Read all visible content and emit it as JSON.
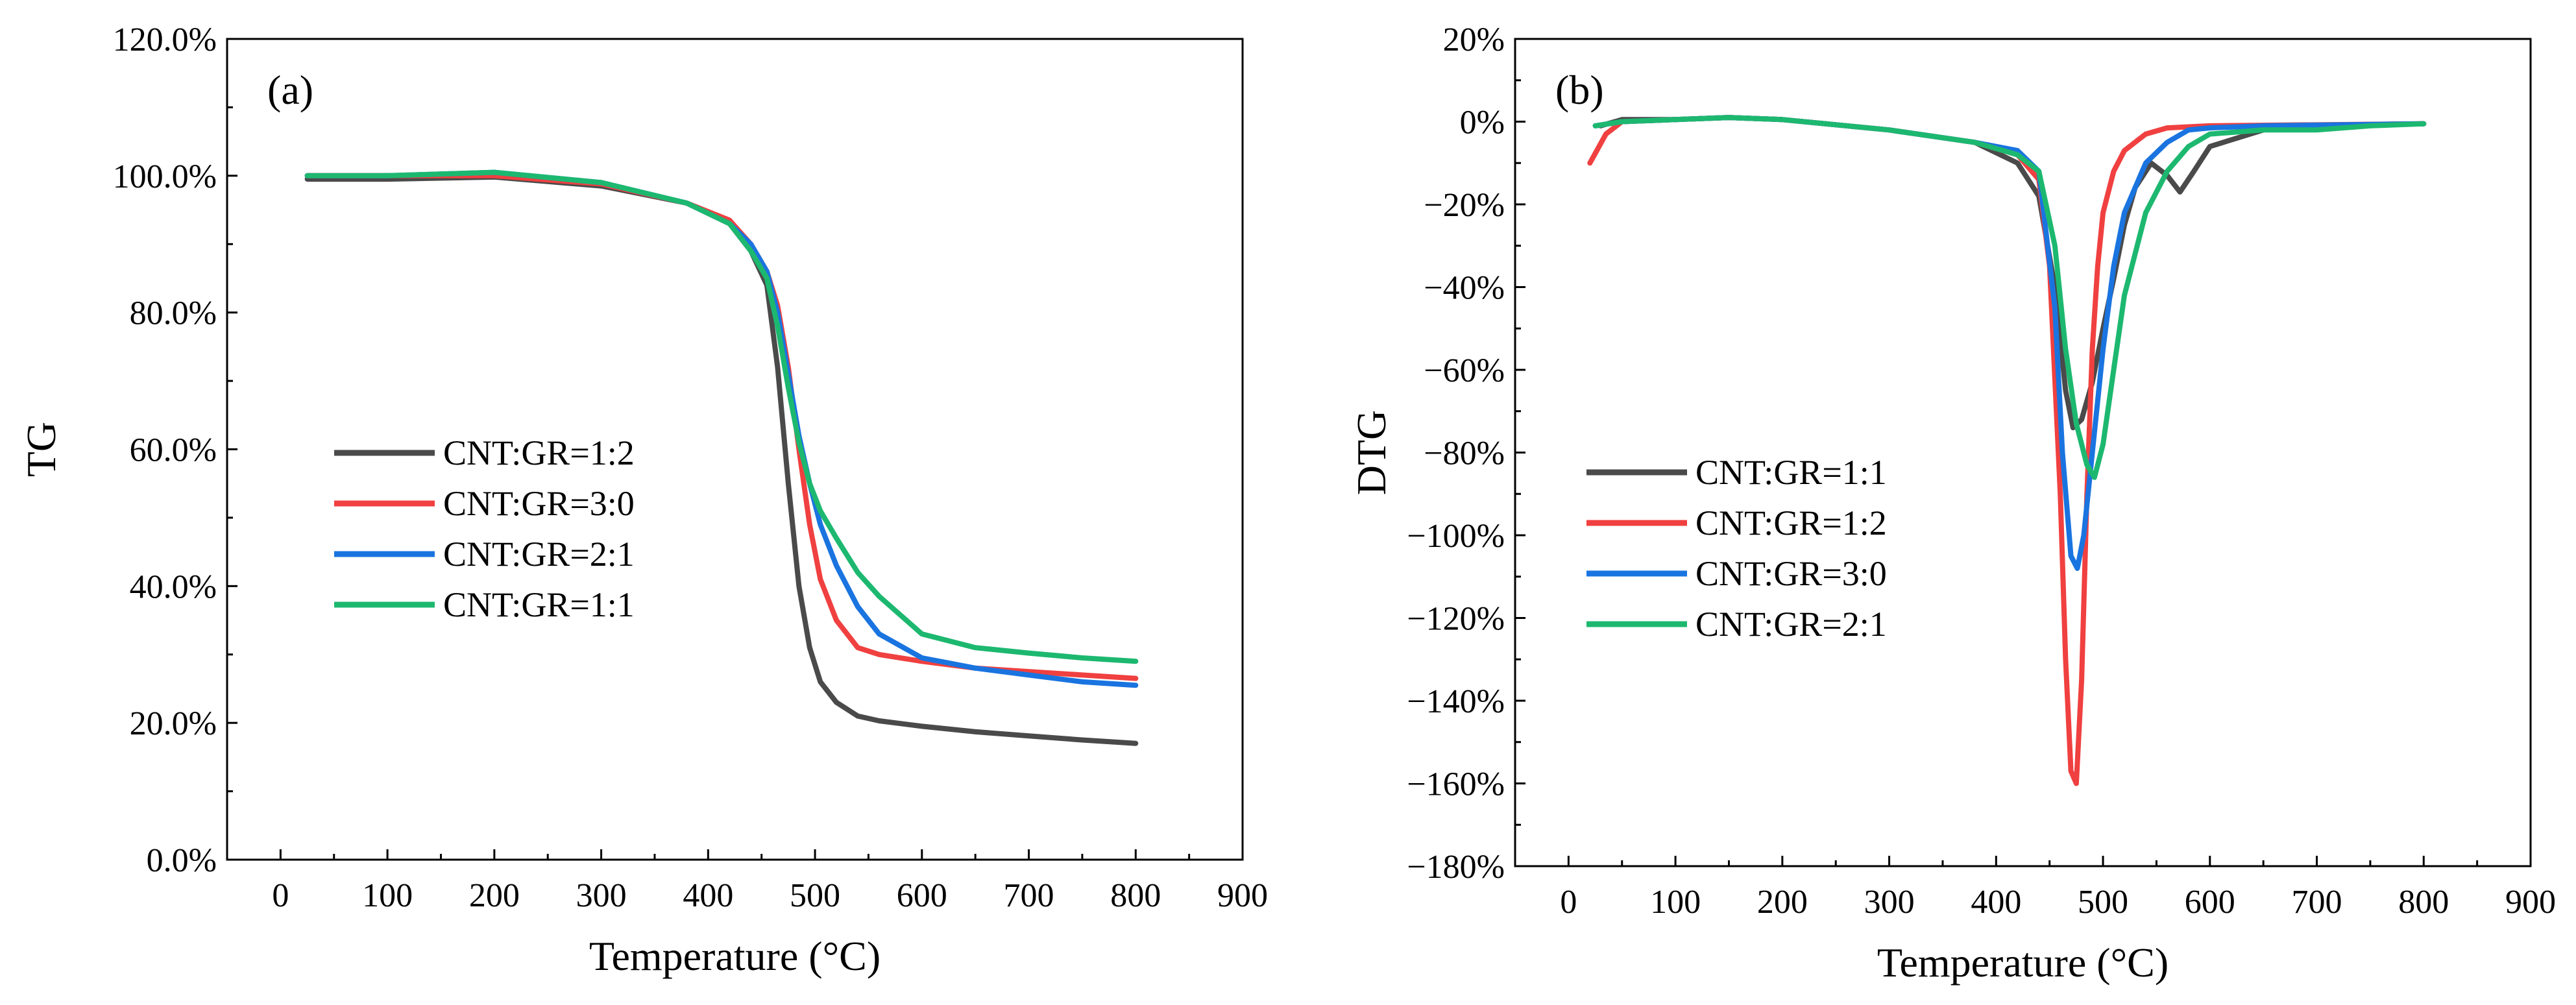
{
  "chart_data": [
    {
      "type": "line",
      "panel_label": "(a)",
      "xlabel": "Temperature (°C)",
      "ylabel": "TG",
      "xlim": [
        -50,
        900
      ],
      "ylim": [
        0,
        120
      ],
      "xticks": [
        0,
        100,
        200,
        300,
        400,
        500,
        600,
        700,
        800,
        900
      ],
      "yticks": [
        0,
        20,
        40,
        60,
        80,
        100,
        120
      ],
      "ytick_labels": [
        "0.0%",
        "20.0%",
        "40.0%",
        "60.0%",
        "80.0%",
        "100.0%",
        "120.0%"
      ],
      "legend_position": "center-left",
      "series": [
        {
          "name": "CNT:GR=1:2",
          "color": "#4a4a4a",
          "x": [
            25,
            100,
            200,
            300,
            380,
            420,
            440,
            455,
            465,
            475,
            485,
            495,
            505,
            520,
            540,
            560,
            600,
            650,
            700,
            750,
            800
          ],
          "y": [
            99.5,
            99.5,
            99.8,
            98.5,
            96,
            93,
            89,
            84,
            72,
            55,
            40,
            31,
            26,
            23,
            21,
            20.3,
            19.5,
            18.7,
            18.1,
            17.5,
            17
          ]
        },
        {
          "name": "CNT:GR=3:0",
          "color": "#f04040",
          "x": [
            25,
            100,
            200,
            300,
            380,
            420,
            440,
            455,
            465,
            475,
            485,
            495,
            505,
            520,
            540,
            560,
            600,
            650,
            700,
            750,
            800
          ],
          "y": [
            100,
            100,
            100,
            98.8,
            96,
            93.5,
            90,
            86,
            81,
            72,
            60,
            49,
            41,
            35,
            31,
            30,
            29,
            28,
            27.5,
            27,
            26.5
          ]
        },
        {
          "name": "CNT:GR=2:1",
          "color": "#1a74e0",
          "x": [
            25,
            100,
            200,
            300,
            380,
            420,
            440,
            455,
            465,
            475,
            485,
            495,
            505,
            520,
            540,
            560,
            600,
            650,
            700,
            750,
            800
          ],
          "y": [
            100,
            100,
            100.5,
            99,
            96,
            93,
            90,
            86,
            80,
            71,
            62,
            55,
            49,
            43,
            37,
            33,
            29.5,
            28,
            27,
            26,
            25.5
          ]
        },
        {
          "name": "CNT:GR=1:1",
          "color": "#1db870",
          "x": [
            25,
            100,
            200,
            300,
            380,
            420,
            440,
            455,
            465,
            475,
            485,
            495,
            505,
            520,
            540,
            560,
            600,
            650,
            700,
            750,
            800
          ],
          "y": [
            100,
            100,
            100.5,
            99,
            96,
            93,
            89,
            85,
            78,
            69,
            61,
            55,
            51,
            47,
            42,
            38.5,
            33,
            31,
            30.2,
            29.5,
            29
          ]
        }
      ]
    },
    {
      "type": "line",
      "panel_label": "(b)",
      "xlabel": "Temperature (°C)",
      "ylabel": "DTG",
      "xlim": [
        -50,
        900
      ],
      "ylim": [
        -180,
        20
      ],
      "xticks": [
        0,
        100,
        200,
        300,
        400,
        500,
        600,
        700,
        800,
        900
      ],
      "yticks": [
        20,
        0,
        -20,
        -40,
        -60,
        -80,
        -100,
        -120,
        -140,
        -160,
        -180
      ],
      "ytick_labels": [
        "20%",
        "0%",
        "−20%",
        "−40%",
        "−60%",
        "−80%",
        "−100%",
        "−120%",
        "−140%",
        "−160%",
        "−180%"
      ],
      "legend_position": "center-left",
      "series": [
        {
          "name": "CNT:GR=1:1",
          "color": "#4a4a4a",
          "x": [
            30,
            50,
            100,
            150,
            200,
            300,
            380,
            420,
            440,
            455,
            465,
            472,
            480,
            490,
            500,
            510,
            520,
            530,
            545,
            560,
            572,
            585,
            600,
            650,
            700,
            800
          ],
          "y": [
            -1,
            0.5,
            0.5,
            1,
            0.5,
            -2,
            -5,
            -10,
            -18,
            -40,
            -65,
            -74,
            -72,
            -63,
            -50,
            -38,
            -25,
            -16,
            -10,
            -13,
            -17,
            -12,
            -6,
            -2,
            -1,
            -0.5
          ]
        },
        {
          "name": "CNT:GR=1:2",
          "color": "#f04040",
          "x": [
            20,
            35,
            50,
            100,
            150,
            200,
            300,
            380,
            420,
            440,
            450,
            460,
            465,
            470,
            475,
            480,
            485,
            490,
            495,
            500,
            510,
            520,
            540,
            560,
            600,
            800
          ],
          "y": [
            -10,
            -3,
            0,
            0.5,
            1,
            0.5,
            -2,
            -5,
            -8,
            -14,
            -35,
            -90,
            -130,
            -157,
            -160,
            -135,
            -90,
            -55,
            -35,
            -22,
            -12,
            -7,
            -3,
            -1.5,
            -1,
            -0.5
          ]
        },
        {
          "name": "CNT:GR=3:0",
          "color": "#1a74e0",
          "x": [
            25,
            50,
            100,
            150,
            200,
            300,
            380,
            420,
            440,
            455,
            462,
            470,
            476,
            482,
            490,
            500,
            510,
            520,
            540,
            560,
            580,
            600,
            650,
            800
          ],
          "y": [
            -1,
            0,
            0.5,
            1,
            0.5,
            -2,
            -5,
            -7,
            -12,
            -45,
            -80,
            -105,
            -108,
            -100,
            -80,
            -55,
            -35,
            -22,
            -10,
            -5,
            -2,
            -1.5,
            -1,
            -0.5
          ]
        },
        {
          "name": "CNT:GR=2:1",
          "color": "#1db870",
          "x": [
            25,
            50,
            100,
            150,
            200,
            300,
            380,
            420,
            440,
            455,
            465,
            475,
            485,
            492,
            500,
            510,
            520,
            540,
            560,
            580,
            600,
            650,
            700,
            750,
            800
          ],
          "y": [
            -1,
            0,
            0.5,
            1,
            0.5,
            -2,
            -5,
            -8,
            -12,
            -30,
            -55,
            -73,
            -83,
            -86,
            -78,
            -60,
            -42,
            -22,
            -12,
            -6,
            -3,
            -2,
            -2,
            -1,
            -0.5
          ]
        }
      ]
    }
  ]
}
